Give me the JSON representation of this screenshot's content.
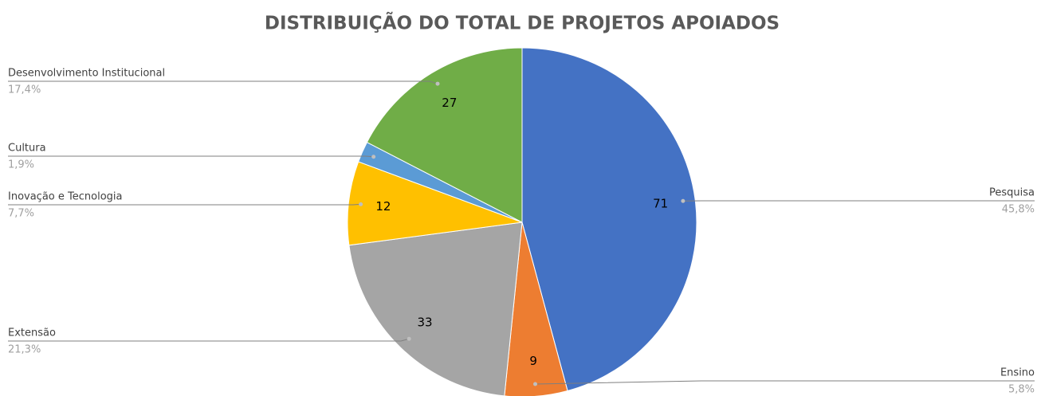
{
  "chart_data": {
    "type": "pie",
    "title": "DISTRIBUIÇÃO DO TOTAL DE PROJETOS APOIADOS",
    "categories": [
      "Pesquisa",
      "Ensino",
      "Extensão",
      "Inovação e Tecnologia",
      "Cultura",
      "Desenvolvimento Institucional"
    ],
    "values": [
      71,
      9,
      33,
      12,
      3,
      27
    ],
    "colors": [
      "#4472c4",
      "#ed7d31",
      "#a5a5a5",
      "#ffc000",
      "#5b9bd5",
      "#70ad47"
    ],
    "percentages": [
      45.8,
      5.8,
      21.3,
      7.7,
      1.9,
      17.4
    ],
    "percentage_labels": [
      "45,8%",
      "5,8%",
      "21,3%",
      "7,7%",
      "1,9%",
      "17,4%"
    ]
  }
}
